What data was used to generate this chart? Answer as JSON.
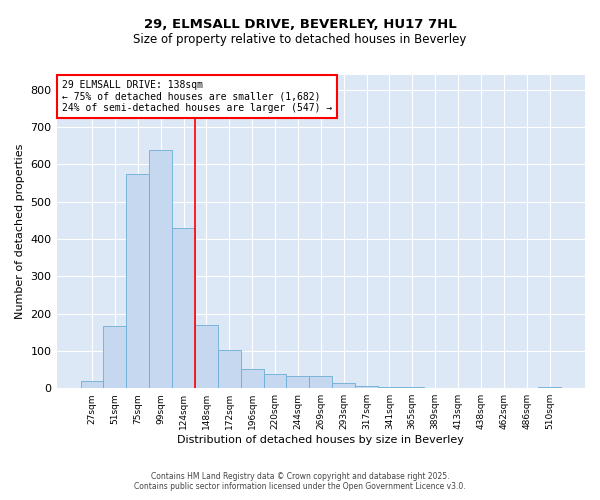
{
  "title1": "29, ELMSALL DRIVE, BEVERLEY, HU17 7HL",
  "title2": "Size of property relative to detached houses in Beverley",
  "xlabel": "Distribution of detached houses by size in Beverley",
  "ylabel": "Number of detached properties",
  "categories": [
    "27sqm",
    "51sqm",
    "75sqm",
    "99sqm",
    "124sqm",
    "148sqm",
    "172sqm",
    "196sqm",
    "220sqm",
    "244sqm",
    "269sqm",
    "293sqm",
    "317sqm",
    "341sqm",
    "365sqm",
    "389sqm",
    "413sqm",
    "438sqm",
    "462sqm",
    "486sqm",
    "510sqm"
  ],
  "bar_values": [
    20,
    168,
    575,
    640,
    430,
    170,
    103,
    52,
    38,
    32,
    32,
    14,
    7,
    4,
    2,
    1,
    1,
    0,
    0,
    0,
    2
  ],
  "bar_color": "#c5d8f0",
  "bar_edge_color": "#6baed6",
  "red_line_x": 5.0,
  "annotation_title": "29 ELMSALL DRIVE: 138sqm",
  "annotation_line2": "← 75% of detached houses are smaller (1,682)",
  "annotation_line3": "24% of semi-detached houses are larger (547) →",
  "ylim": [
    0,
    840
  ],
  "yticks": [
    0,
    100,
    200,
    300,
    400,
    500,
    600,
    700,
    800
  ],
  "bg_color": "#dce8f5",
  "footer1": "Contains HM Land Registry data © Crown copyright and database right 2025.",
  "footer2": "Contains public sector information licensed under the Open Government Licence v3.0."
}
